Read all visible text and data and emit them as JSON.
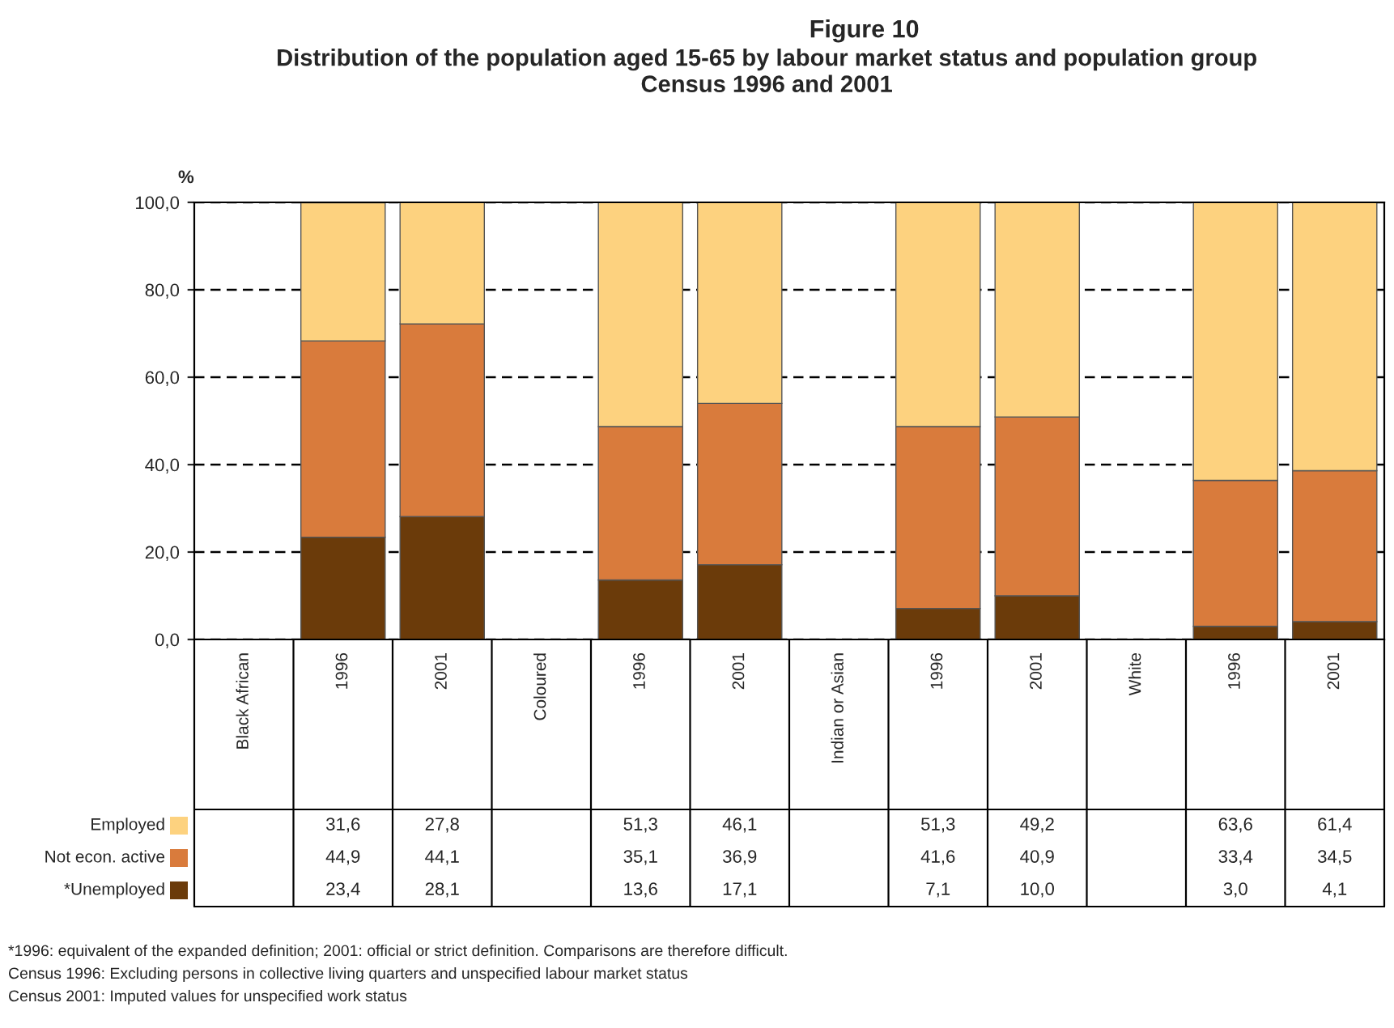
{
  "chart_data": {
    "type": "bar",
    "stacked": true,
    "title": "Figure 10",
    "subtitle": "Distribution of the population aged 15-65 by labour market status and population group\nCensus 1996 and 2001",
    "ylabel": "%",
    "categories": [
      "Black African",
      "1996",
      "2001",
      "Coloured",
      "1996",
      "2001",
      "Indian or Asian",
      "1996",
      "2001",
      "White",
      "1996",
      "2001"
    ],
    "series": [
      {
        "name": "*Unemployed",
        "color": "#6b3b0a",
        "values": [
          null,
          23.4,
          28.1,
          null,
          13.6,
          17.1,
          null,
          7.1,
          10.0,
          null,
          3.0,
          4.1
        ],
        "value_labels": [
          null,
          "23,4",
          "28,1",
          null,
          "13,6",
          "17,1",
          null,
          "7,1",
          "10,0",
          null,
          "3,0",
          "4,1"
        ]
      },
      {
        "name": "Not econ. active",
        "color": "#d97b3c",
        "values": [
          null,
          44.9,
          44.1,
          null,
          35.1,
          36.9,
          null,
          41.6,
          40.9,
          null,
          33.4,
          34.5
        ],
        "value_labels": [
          null,
          "44,9",
          "44,1",
          null,
          "35,1",
          "36,9",
          null,
          "41,6",
          "40,9",
          null,
          "33,4",
          "34,5"
        ]
      },
      {
        "name": "Employed",
        "color": "#fdd27f",
        "values": [
          null,
          31.6,
          27.8,
          null,
          51.3,
          46.1,
          null,
          51.3,
          49.2,
          null,
          63.6,
          61.4
        ],
        "value_labels": [
          null,
          "31,6",
          "27,8",
          null,
          "51,3",
          "46,1",
          null,
          "51,3",
          "49,2",
          null,
          "63,6",
          "61,4"
        ]
      }
    ],
    "ylim": [
      0,
      100
    ],
    "yticks": [
      {
        "value": 0,
        "label": "0,0"
      },
      {
        "value": 20,
        "label": "20,0"
      },
      {
        "value": 40,
        "label": "40,0"
      },
      {
        "value": 60,
        "label": "60,0"
      },
      {
        "value": 80,
        "label": "80,0"
      },
      {
        "value": 100,
        "label": "100,0"
      }
    ],
    "grid": "y",
    "legend": "bottom left",
    "annotations": [
      "*1996: equivalent of the expanded definition; 2001: official or strict definition. Comparisons are therefore difficult.",
      "Census 1996: Excluding persons in collective living quarters and unspecified labour market status",
      "Census 2001: Imputed values for unspecified work status"
    ]
  }
}
